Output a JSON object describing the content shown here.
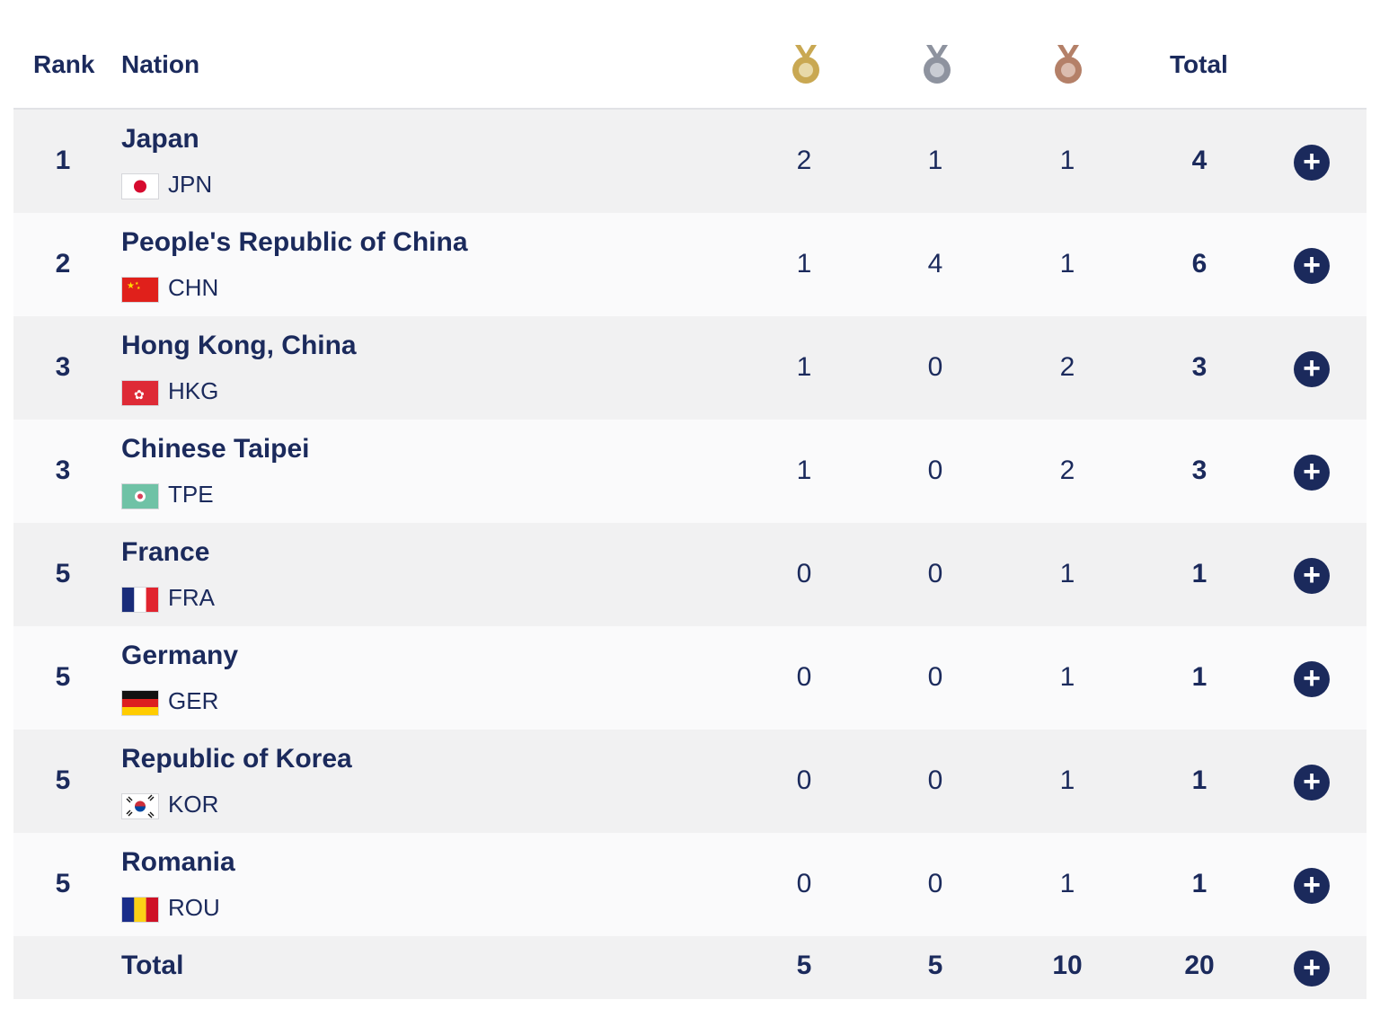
{
  "header": {
    "rank_label": "Rank",
    "nation_label": "Nation",
    "gold_icon": "gold-medal-icon",
    "silver_icon": "silver-medal-icon",
    "bronze_icon": "bronze-medal-icon",
    "total_label": "Total"
  },
  "colors": {
    "text": "#1b2a5c",
    "gold": "#c9a852",
    "silver": "#8e939f",
    "bronze": "#b48068",
    "row_alt": "#f1f1f2"
  },
  "rows": [
    {
      "rank": "1",
      "nation": "Japan",
      "code": "JPN",
      "flag": "japan-flag",
      "gold": "2",
      "silver": "1",
      "bronze": "1",
      "total": "4"
    },
    {
      "rank": "2",
      "nation": "People's Republic of China",
      "code": "CHN",
      "flag": "china-flag",
      "gold": "1",
      "silver": "4",
      "bronze": "1",
      "total": "6"
    },
    {
      "rank": "3",
      "nation": "Hong Kong, China",
      "code": "HKG",
      "flag": "hong-kong-flag",
      "gold": "1",
      "silver": "0",
      "bronze": "2",
      "total": "3"
    },
    {
      "rank": "3",
      "nation": "Chinese Taipei",
      "code": "TPE",
      "flag": "chinese-taipei-flag",
      "gold": "1",
      "silver": "0",
      "bronze": "2",
      "total": "3"
    },
    {
      "rank": "5",
      "nation": "France",
      "code": "FRA",
      "flag": "france-flag",
      "gold": "0",
      "silver": "0",
      "bronze": "1",
      "total": "1"
    },
    {
      "rank": "5",
      "nation": "Germany",
      "code": "GER",
      "flag": "germany-flag",
      "gold": "0",
      "silver": "0",
      "bronze": "1",
      "total": "1"
    },
    {
      "rank": "5",
      "nation": "Republic of Korea",
      "code": "KOR",
      "flag": "korea-flag",
      "gold": "0",
      "silver": "0",
      "bronze": "1",
      "total": "1"
    },
    {
      "rank": "5",
      "nation": "Romania",
      "code": "ROU",
      "flag": "romania-flag",
      "gold": "0",
      "silver": "0",
      "bronze": "1",
      "total": "1"
    }
  ],
  "footer": {
    "label": "Total",
    "gold": "5",
    "silver": "5",
    "bronze": "10",
    "total": "20"
  },
  "expand_icon": "plus-circle-icon"
}
